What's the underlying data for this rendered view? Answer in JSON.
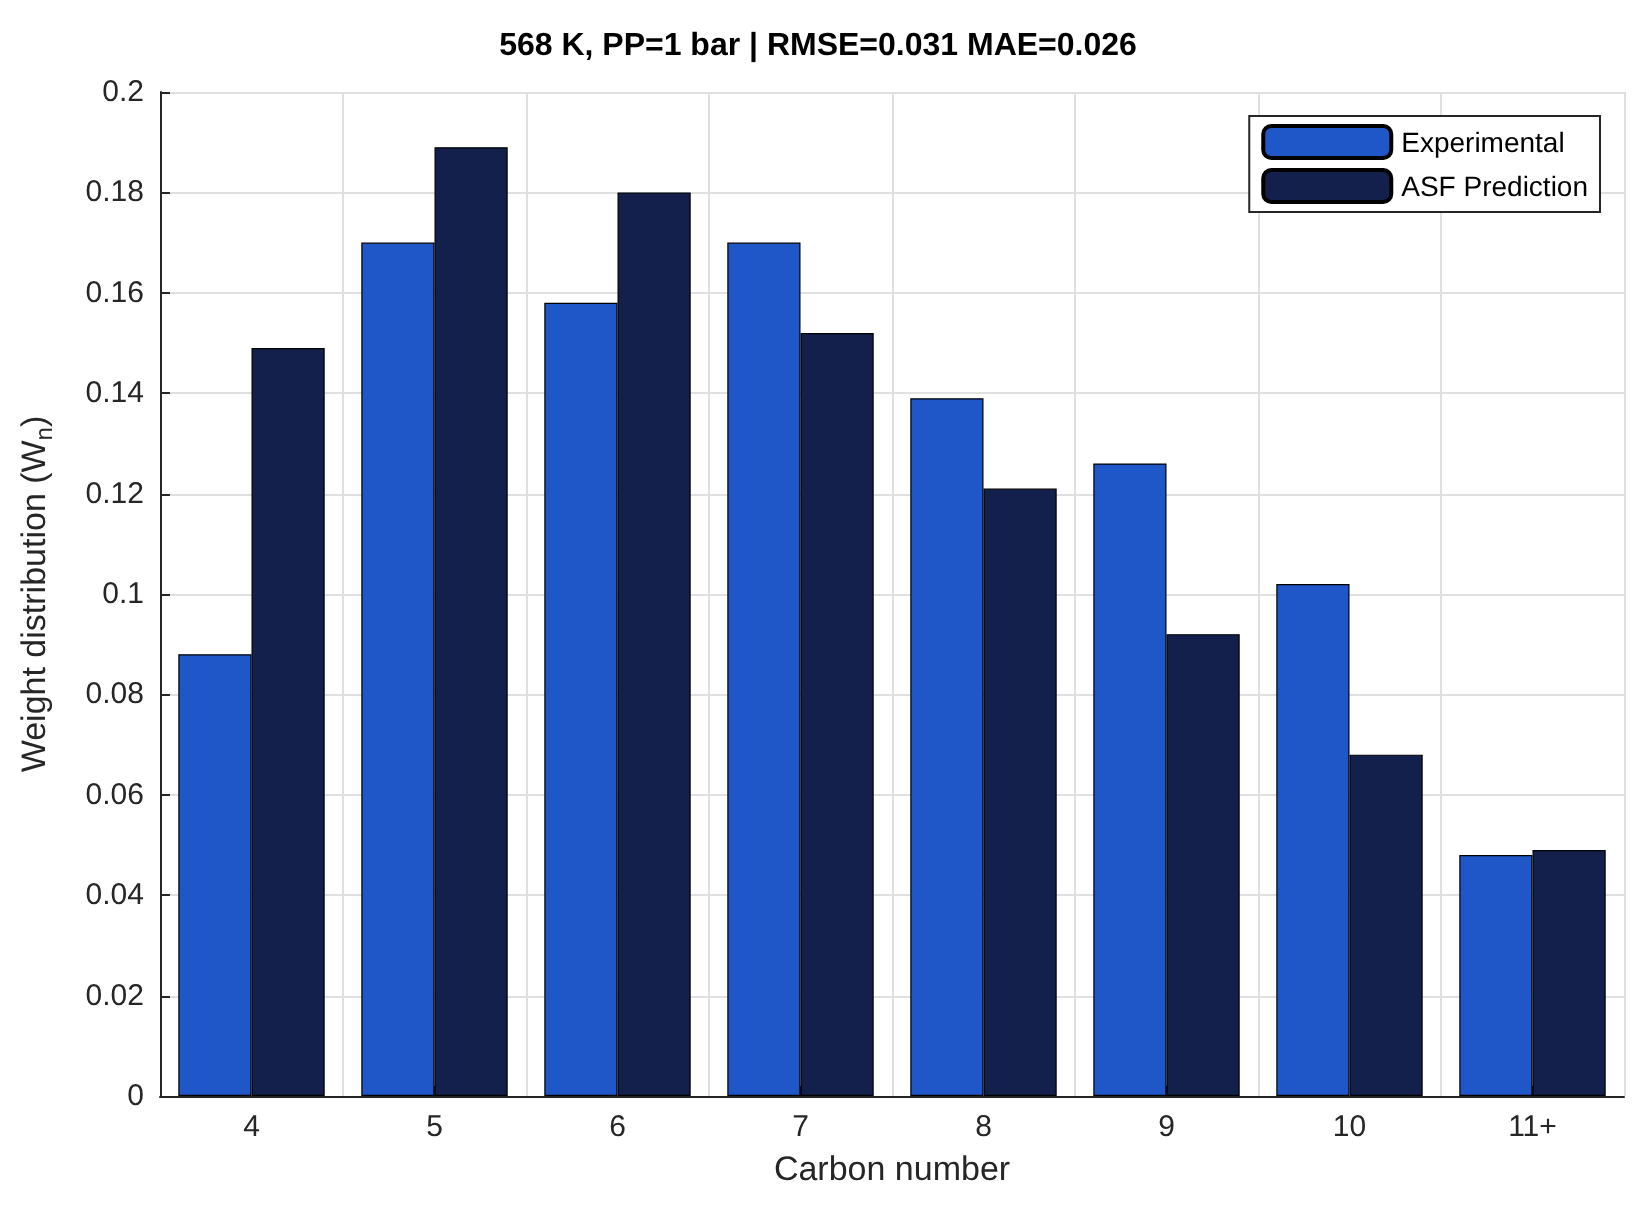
{
  "chart_data": {
    "type": "bar",
    "title": "568 K, PP=1 bar | RMSE=0.031 MAE=0.026",
    "xlabel": "Carbon number",
    "ylabel": "Weight distribution (W$_{n}$)",
    "categories": [
      "4",
      "5",
      "6",
      "7",
      "8",
      "9",
      "10",
      "11+"
    ],
    "series": [
      {
        "name": "Experimental",
        "color": "#1f57c8",
        "values": [
          0.088,
          0.17,
          0.158,
          0.17,
          0.139,
          0.126,
          0.102,
          0.048
        ]
      },
      {
        "name": "ASF Prediction",
        "color": "#13204b",
        "values": [
          0.149,
          0.189,
          0.18,
          0.152,
          0.121,
          0.092,
          0.068,
          0.049
        ]
      }
    ],
    "ylim": [
      0,
      0.2
    ],
    "yticks": [
      0,
      0.02,
      0.04,
      0.06,
      0.08,
      0.1,
      0.12,
      0.14,
      0.16,
      0.18,
      0.2
    ],
    "grid": true,
    "legend": "top right"
  }
}
